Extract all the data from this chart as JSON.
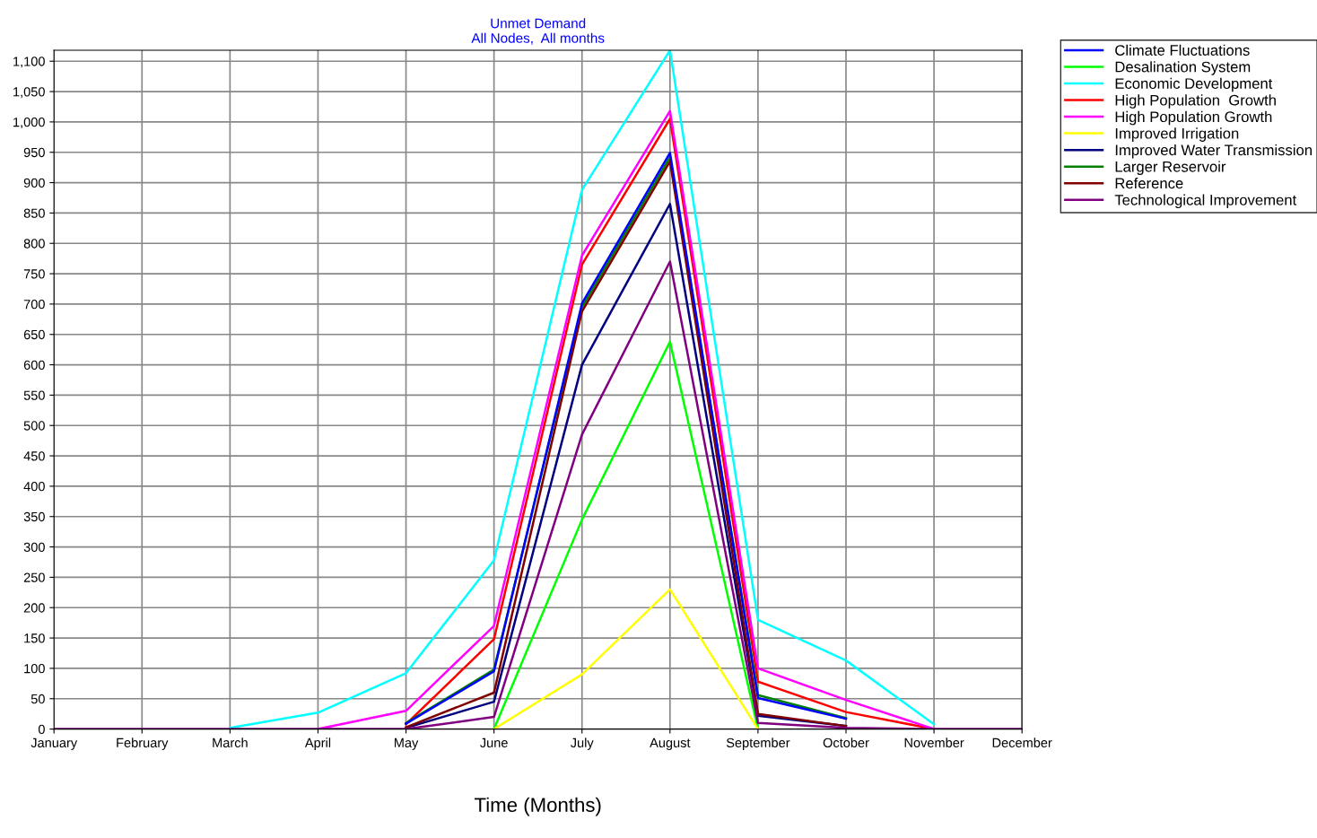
{
  "chart_data": {
    "type": "line",
    "title": "Unmet Demand\nAll Nodes,  All months",
    "xlabel": "Time (Months)",
    "categories": [
      "January",
      "February",
      "March",
      "April",
      "May",
      "June",
      "July",
      "August",
      "September",
      "October",
      "November",
      "December"
    ],
    "ylim": [
      0,
      1118
    ],
    "yticks": [
      {
        "value": 0,
        "label": "0"
      },
      {
        "value": 50,
        "label": "50"
      },
      {
        "value": 100,
        "label": "100"
      },
      {
        "value": 150,
        "label": "150"
      },
      {
        "value": 200,
        "label": "200"
      },
      {
        "value": 250,
        "label": "250"
      },
      {
        "value": 300,
        "label": "300"
      },
      {
        "value": 350,
        "label": "350"
      },
      {
        "value": 400,
        "label": "400"
      },
      {
        "value": 450,
        "label": "450"
      },
      {
        "value": 500,
        "label": "500"
      },
      {
        "value": 550,
        "label": "550"
      },
      {
        "value": 600,
        "label": "600"
      },
      {
        "value": 650,
        "label": "650"
      },
      {
        "value": 700,
        "label": "700"
      },
      {
        "value": 750,
        "label": "750"
      },
      {
        "value": 800,
        "label": "800"
      },
      {
        "value": 850,
        "label": "850"
      },
      {
        "value": 900,
        "label": "900"
      },
      {
        "value": 950,
        "label": "950"
      },
      {
        "value": 1000,
        "label": "1,000"
      },
      {
        "value": 1050,
        "label": "1,050"
      },
      {
        "value": 1100,
        "label": "1,100"
      }
    ],
    "grid": true,
    "legend": "top right",
    "marker": "none",
    "line_style": "solid",
    "series": [
      {
        "name": "Climate Fluctuations",
        "color": "#0000ff",
        "values": [
          null,
          null,
          null,
          null,
          9,
          95,
          701,
          949,
          51,
          17,
          null,
          null
        ]
      },
      {
        "name": "Desalination System",
        "color": "#00ff00",
        "values": [
          null,
          null,
          null,
          null,
          null,
          0,
          345,
          638,
          0,
          null,
          null,
          null
        ]
      },
      {
        "name": "Economic Development",
        "color": "#00ffff",
        "values": [
          null,
          null,
          2,
          27,
          92,
          278,
          888,
          1118,
          180,
          113,
          8,
          null
        ]
      },
      {
        "name": "High Population  Growth",
        "color": "#ff0000",
        "values": [
          null,
          null,
          null,
          null,
          8,
          148,
          765,
          1005,
          78,
          28,
          0,
          null
        ]
      },
      {
        "name": "High Population Growth",
        "color": "#ff00ff",
        "values": [
          null,
          null,
          null,
          0,
          30,
          170,
          780,
          1018,
          100,
          48,
          0,
          null
        ]
      },
      {
        "name": "Improved Irrigation",
        "color": "#ffff00",
        "values": [
          null,
          null,
          null,
          null,
          null,
          0,
          90,
          230,
          0,
          null,
          null,
          null
        ]
      },
      {
        "name": "Improved Water Transmission",
        "color": "#000080",
        "values": [
          null,
          null,
          null,
          null,
          2,
          45,
          600,
          865,
          22,
          5,
          null,
          null
        ]
      },
      {
        "name": "Larger Reservoir",
        "color": "#008000",
        "values": [
          null,
          null,
          null,
          null,
          10,
          98,
          695,
          942,
          56,
          18,
          null,
          null
        ]
      },
      {
        "name": "Reference",
        "color": "#800000",
        "values": [
          null,
          null,
          null,
          null,
          3,
          60,
          688,
          935,
          25,
          5,
          null,
          null
        ]
      },
      {
        "name": "Technological Improvement",
        "color": "#800080",
        "values": [
          0,
          0,
          0,
          0,
          0,
          20,
          485,
          770,
          10,
          2,
          0,
          0
        ]
      }
    ]
  }
}
